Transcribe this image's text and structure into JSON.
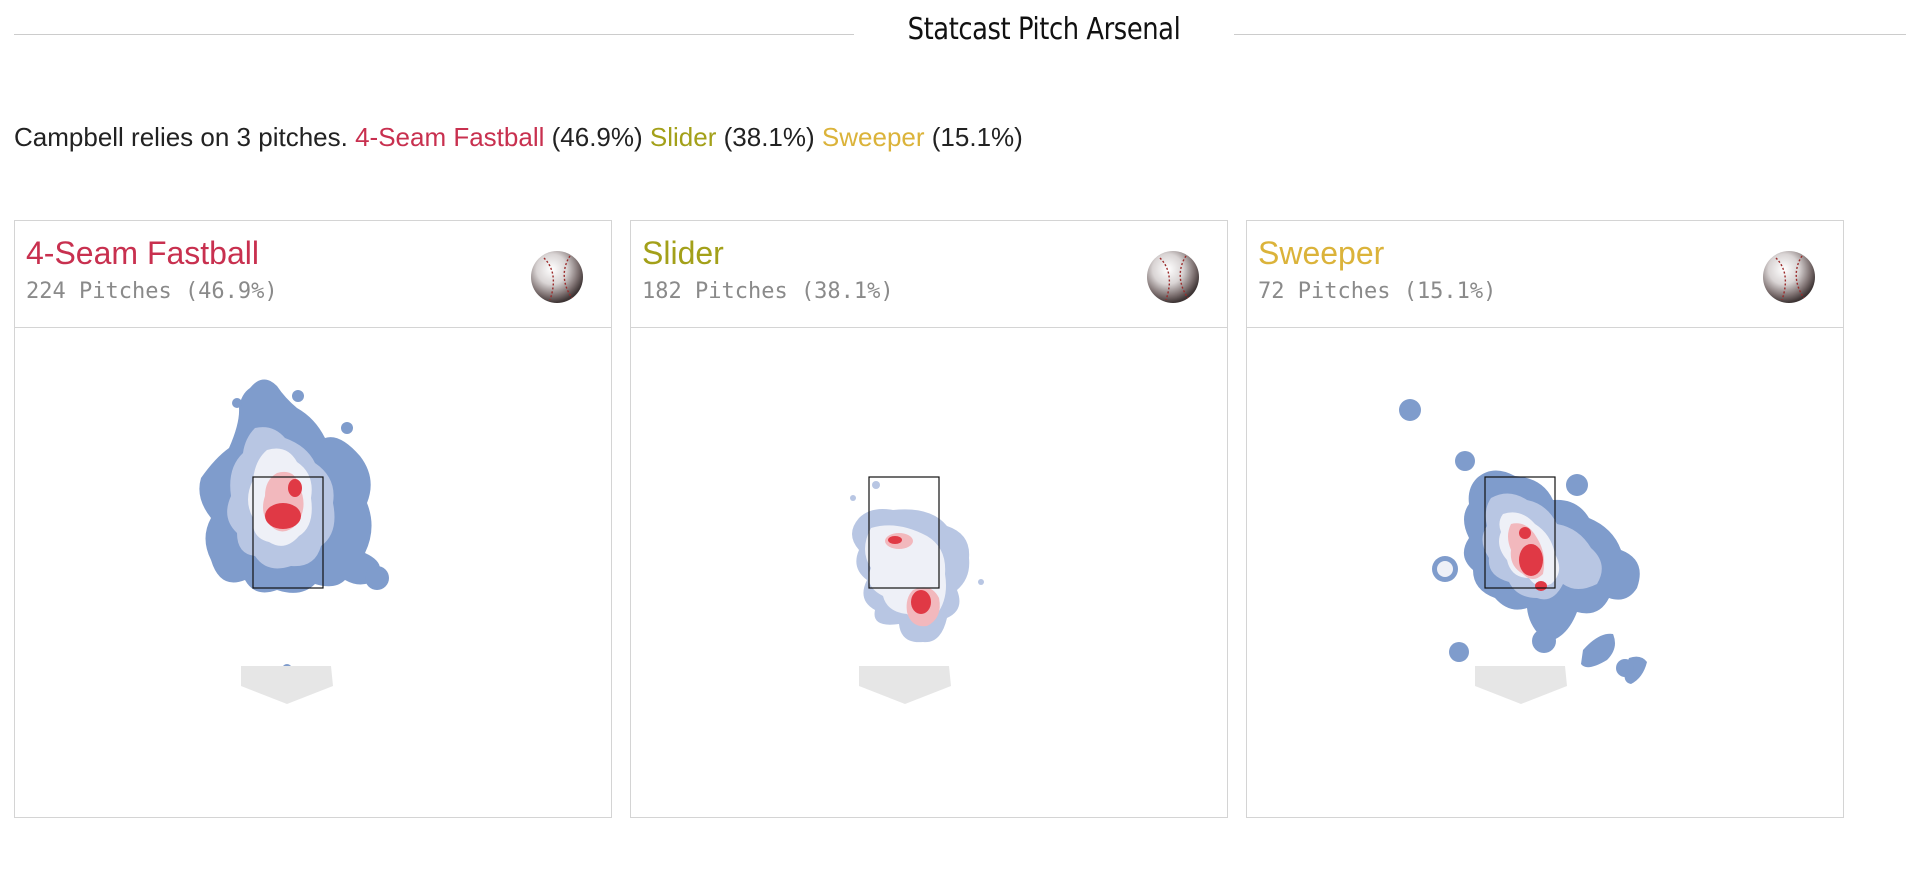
{
  "header": {
    "title": "Statcast Pitch Arsenal"
  },
  "summary": {
    "intro": "Campbell relies on 3 pitches.",
    "items": [
      {
        "name": "4-Seam Fastball",
        "pct": "(46.9%)",
        "color": "#c8304f"
      },
      {
        "name": "Slider",
        "pct": "(38.1%)",
        "color": "#a3a019"
      },
      {
        "name": "Sweeper",
        "pct": "(15.1%)",
        "color": "#dbb33a"
      }
    ]
  },
  "cards": [
    {
      "name": "4-Seam Fastball",
      "count": "224 Pitches (46.9%)",
      "color": "#c8304f",
      "icon": "baseball-icon",
      "heatmap": "location-density-4-seam-fastball"
    },
    {
      "name": "Slider",
      "count": "182 Pitches (38.1%)",
      "color": "#a3a019",
      "icon": "baseball-icon",
      "heatmap": "location-density-slider"
    },
    {
      "name": "Sweeper",
      "count": "72 Pitches (15.1%)",
      "color": "#dbb33a",
      "icon": "baseball-icon",
      "heatmap": "location-density-sweeper"
    }
  ],
  "colors": {
    "density_low": "#7f9ccc",
    "density_mid": "#eef0f7",
    "density_high": "#e03945",
    "zone_border": "#111111",
    "plate": "#e6e6e6"
  }
}
